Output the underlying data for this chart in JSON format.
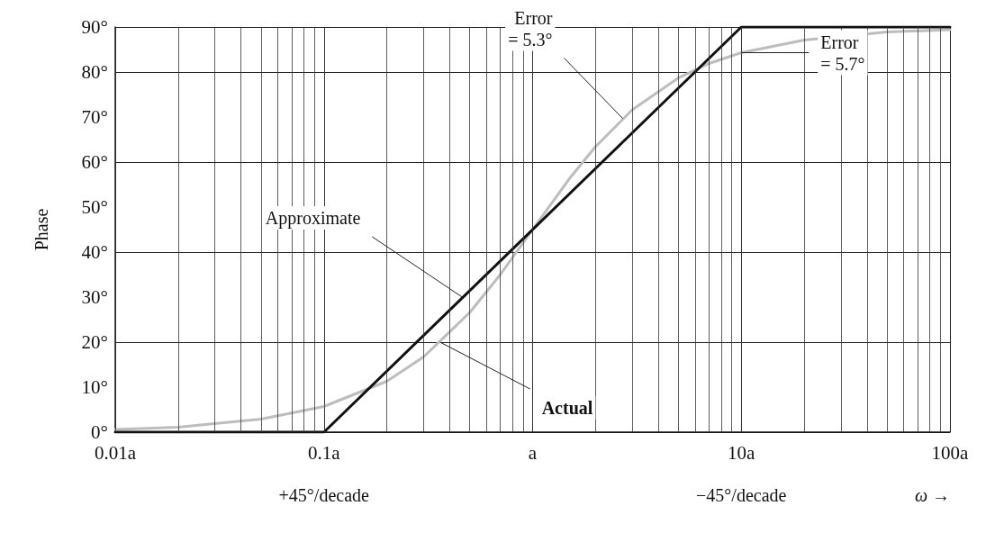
{
  "chart_data": {
    "type": "line",
    "ylabel": "Phase",
    "xlabel": "ω →",
    "log": "x",
    "grid": true,
    "marker": "none",
    "line_style": "solid",
    "xlim": [
      0.01,
      100
    ],
    "xticks": [
      {
        "value": 0.01,
        "label": "0.01a"
      },
      {
        "value": 0.1,
        "label": "0.1a"
      },
      {
        "value": 1,
        "label": "a"
      },
      {
        "value": 10,
        "label": "10a"
      },
      {
        "value": 100,
        "label": "100a"
      }
    ],
    "ylim": [
      0,
      90
    ],
    "yticks": [
      {
        "value": 0,
        "label": "0°"
      },
      {
        "value": 10,
        "label": "10°"
      },
      {
        "value": 20,
        "label": "20°"
      },
      {
        "value": 30,
        "label": "30°"
      },
      {
        "value": 40,
        "label": "40°"
      },
      {
        "value": 50,
        "label": "50°"
      },
      {
        "value": 60,
        "label": "60°"
      },
      {
        "value": 70,
        "label": "70°"
      },
      {
        "value": 80,
        "label": "80°"
      },
      {
        "value": 90,
        "label": "90°"
      }
    ],
    "series": [
      {
        "color": "#bdbdbd",
        "x": [
          0.01,
          0.02,
          0.05,
          0.1,
          0.2,
          0.3,
          0.5,
          0.7,
          1,
          1.5,
          2,
          3,
          5,
          7,
          10,
          20,
          50,
          100
        ],
        "values": [
          0.6,
          1.1,
          2.9,
          5.7,
          11.3,
          16.7,
          26.6,
          35,
          45,
          56.3,
          63.4,
          71.6,
          78.7,
          81.9,
          84.3,
          87.1,
          88.9,
          89.4
        ]
      },
      {
        "color": "#111111",
        "x": [
          0.01,
          0.1,
          10,
          100
        ],
        "values": [
          0,
          0,
          90,
          90
        ]
      }
    ],
    "annotations": [
      {
        "text": "Approximate",
        "x": 0.46,
        "y": 30
      },
      {
        "text": "Actual",
        "x": 0.36,
        "y": 20
      },
      {
        "text": "Error\n= 5.3°",
        "x": 2.7,
        "y": 69.7
      },
      {
        "text": "Error\n= 5.7°",
        "x": 10,
        "y": 84.3
      },
      "+45°/decade",
      "−45°/decade"
    ]
  }
}
